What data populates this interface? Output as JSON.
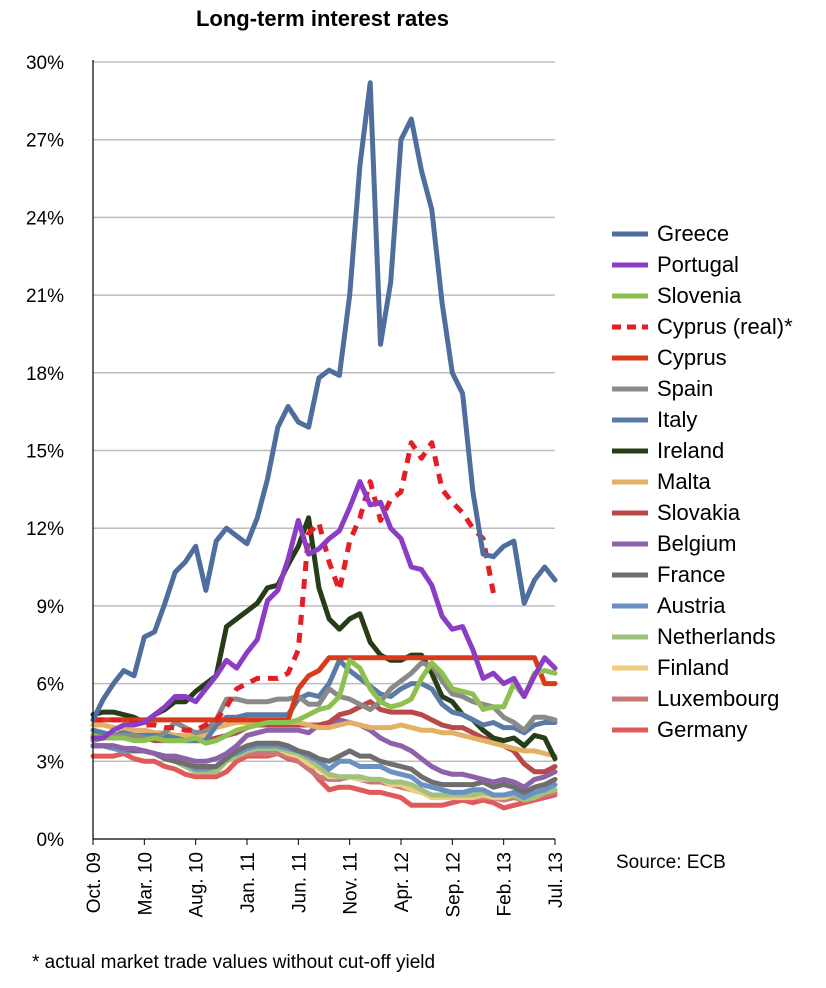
{
  "chart_data": {
    "type": "line",
    "title": "Long-term interest rates",
    "ylim": [
      0,
      30
    ],
    "y_ticks": [
      0,
      3,
      6,
      9,
      12,
      15,
      18,
      21,
      24,
      27,
      30
    ],
    "y_tick_labels": [
      "0%",
      "3%",
      "6%",
      "9%",
      "12%",
      "15%",
      "18%",
      "21%",
      "24%",
      "27%",
      "30%"
    ],
    "x_tick_labels": [
      "Oct. 09",
      "Mar. 10",
      "Aug. 10",
      "Jan. 11",
      "Jun. 11",
      "Nov. 11",
      "Apr. 12",
      "Sep. 12",
      "Feb. 13",
      "Jul. 13"
    ],
    "x_start": "Oct. 09",
    "x_end": "Jul. 13",
    "grid": true,
    "legend_position": "right",
    "source": "Source: ECB",
    "footnote": "* actual market trade values without cut-off yield",
    "series": [
      {
        "name": "Greece",
        "color": "#4F6E9E",
        "dashed": false,
        "values": [
          4.6,
          5.4,
          6.0,
          6.5,
          6.3,
          7.8,
          8.0,
          9.1,
          10.3,
          10.7,
          11.3,
          9.6,
          11.5,
          12.0,
          11.7,
          11.4,
          12.4,
          13.9,
          15.9,
          16.7,
          16.1,
          15.9,
          17.8,
          18.1,
          17.9,
          21.0,
          26.0,
          29.2,
          19.1,
          21.5,
          27.0,
          27.8,
          25.8,
          24.3,
          20.7,
          18.0,
          17.2,
          13.4,
          11.0,
          10.9,
          11.3,
          11.5,
          9.1,
          10.0,
          10.5,
          10.0
        ]
      },
      {
        "name": "Portugal",
        "color": "#8B3DC6",
        "dashed": false,
        "values": [
          3.9,
          3.9,
          4.2,
          4.4,
          4.4,
          4.5,
          4.8,
          5.1,
          5.5,
          5.5,
          5.3,
          5.8,
          6.3,
          6.9,
          6.6,
          7.2,
          7.7,
          9.2,
          9.6,
          10.8,
          12.3,
          11.0,
          11.2,
          11.6,
          11.9,
          12.8,
          13.8,
          12.9,
          13.0,
          12.0,
          11.6,
          10.5,
          10.4,
          9.8,
          8.6,
          8.1,
          8.2,
          7.3,
          6.2,
          6.4,
          6.0,
          6.2,
          5.5,
          6.3,
          7.0,
          6.6
        ]
      },
      {
        "name": "Slovenia",
        "color": "#8DC050",
        "dashed": false,
        "values": [
          4.0,
          3.9,
          3.9,
          3.9,
          3.8,
          3.8,
          3.9,
          3.8,
          3.8,
          3.8,
          3.9,
          3.7,
          3.8,
          4.0,
          4.2,
          4.3,
          4.4,
          4.5,
          4.5,
          4.5,
          4.6,
          4.8,
          5.0,
          5.1,
          5.5,
          6.9,
          6.6,
          5.8,
          5.3,
          5.1,
          5.2,
          5.4,
          6.2,
          6.8,
          6.4,
          5.8,
          5.7,
          5.6,
          5.0,
          5.1,
          5.1,
          6.0,
          5.5,
          6.4,
          6.5,
          6.4
        ]
      },
      {
        "name": "Cyprus (real)*",
        "color": "#E31E25",
        "dashed": true,
        "values": [
          4.6,
          4.6,
          4.6,
          4.6,
          4.5,
          4.4,
          4.4,
          4.3,
          4.3,
          4.2,
          4.2,
          4.4,
          4.6,
          5.1,
          5.8,
          6.0,
          6.2,
          6.2,
          6.2,
          6.4,
          7.3,
          11.8,
          12.2,
          10.7,
          9.6,
          11.5,
          12.4,
          13.8,
          12.3,
          13.1,
          13.4,
          15.3,
          14.7,
          15.3,
          13.5,
          13.0,
          12.6,
          12.0,
          11.6,
          9.5,
          null,
          null,
          null,
          null,
          null,
          null
        ]
      },
      {
        "name": "Cyprus",
        "color": "#D93A19",
        "dashed": false,
        "values": [
          4.6,
          4.6,
          4.6,
          4.6,
          4.6,
          4.6,
          4.6,
          4.6,
          4.6,
          4.6,
          4.6,
          4.6,
          4.6,
          4.6,
          4.6,
          4.6,
          4.6,
          4.6,
          4.6,
          4.6,
          5.8,
          6.3,
          6.5,
          7.0,
          7.0,
          7.0,
          7.0,
          7.0,
          7.0,
          7.0,
          7.0,
          7.0,
          7.0,
          7.0,
          7.0,
          7.0,
          7.0,
          7.0,
          7.0,
          7.0,
          7.0,
          7.0,
          7.0,
          7.0,
          6.0,
          6.0
        ]
      },
      {
        "name": "Spain",
        "color": "#8A8A8A",
        "dashed": false,
        "values": [
          3.8,
          3.9,
          4.0,
          4.0,
          4.0,
          3.9,
          3.9,
          4.1,
          4.5,
          4.3,
          4.1,
          4.2,
          4.6,
          5.4,
          5.4,
          5.3,
          5.3,
          5.3,
          5.4,
          5.4,
          5.5,
          5.2,
          5.2,
          5.8,
          5.5,
          5.4,
          5.2,
          5.0,
          5.3,
          5.8,
          6.1,
          6.4,
          6.8,
          6.7,
          6.1,
          5.6,
          5.5,
          5.3,
          5.2,
          5.1,
          4.7,
          4.5,
          4.2,
          4.7,
          4.7,
          4.6
        ]
      },
      {
        "name": "Italy",
        "color": "#5A7BA6",
        "dashed": false,
        "values": [
          4.2,
          4.1,
          4.0,
          4.1,
          4.0,
          4.0,
          4.0,
          4.0,
          3.9,
          3.8,
          3.8,
          3.8,
          4.4,
          4.7,
          4.7,
          4.8,
          4.8,
          4.8,
          4.8,
          4.8,
          5.4,
          5.6,
          5.5,
          6.0,
          6.9,
          6.5,
          6.2,
          5.9,
          5.6,
          5.5,
          5.8,
          6.0,
          6.0,
          5.8,
          5.2,
          4.9,
          4.8,
          4.6,
          4.4,
          4.5,
          4.3,
          4.3,
          4.1,
          4.4,
          4.5,
          4.5
        ]
      },
      {
        "name": "Ireland",
        "color": "#273D18",
        "dashed": false,
        "values": [
          4.8,
          4.9,
          4.9,
          4.8,
          4.7,
          4.5,
          4.8,
          5.0,
          5.3,
          5.3,
          5.7,
          6.0,
          6.3,
          8.2,
          8.5,
          8.8,
          9.1,
          9.7,
          9.8,
          10.6,
          11.3,
          12.4,
          9.7,
          8.5,
          8.1,
          8.5,
          8.7,
          7.6,
          7.1,
          6.9,
          6.9,
          7.1,
          7.1,
          6.4,
          5.5,
          5.3,
          4.8,
          4.6,
          4.2,
          3.9,
          3.8,
          3.9,
          3.6,
          4.0,
          3.9,
          3.1
        ]
      },
      {
        "name": "Malta",
        "color": "#E2B165",
        "dashed": false,
        "values": [
          4.4,
          4.4,
          4.3,
          4.2,
          4.2,
          4.2,
          4.1,
          4.1,
          4.0,
          4.0,
          4.0,
          4.0,
          4.3,
          4.4,
          4.5,
          4.5,
          4.5,
          4.5,
          4.5,
          4.5,
          4.5,
          4.4,
          4.3,
          4.3,
          4.4,
          4.5,
          4.4,
          4.3,
          4.3,
          4.3,
          4.4,
          4.3,
          4.2,
          4.2,
          4.1,
          4.1,
          4.0,
          3.9,
          3.8,
          3.7,
          3.6,
          3.5,
          3.4,
          3.4,
          3.3,
          3.2
        ]
      },
      {
        "name": "Slovakia",
        "color": "#B94848",
        "dashed": false,
        "values": [
          4.0,
          4.0,
          3.9,
          3.9,
          3.9,
          3.9,
          3.8,
          3.8,
          3.8,
          3.8,
          3.8,
          3.8,
          3.9,
          4.0,
          4.1,
          4.3,
          4.4,
          4.4,
          4.4,
          4.4,
          4.4,
          4.4,
          4.4,
          4.5,
          4.8,
          4.9,
          5.1,
          5.3,
          5.0,
          4.9,
          4.9,
          4.9,
          4.8,
          4.6,
          4.4,
          4.3,
          4.3,
          4.1,
          3.9,
          3.8,
          3.6,
          3.4,
          2.9,
          2.6,
          2.6,
          2.8
        ]
      },
      {
        "name": "Belgium",
        "color": "#8D62A8",
        "dashed": false,
        "values": [
          3.6,
          3.6,
          3.6,
          3.5,
          3.5,
          3.4,
          3.3,
          3.2,
          3.2,
          3.1,
          3.0,
          3.0,
          3.1,
          3.3,
          3.6,
          4.0,
          4.1,
          4.2,
          4.2,
          4.2,
          4.2,
          4.1,
          4.4,
          4.5,
          4.6,
          4.5,
          4.4,
          4.2,
          3.9,
          3.7,
          3.6,
          3.4,
          3.1,
          2.8,
          2.6,
          2.5,
          2.5,
          2.4,
          2.3,
          2.2,
          2.3,
          2.2,
          2.0,
          2.3,
          2.4,
          2.6
        ]
      },
      {
        "name": "France",
        "color": "#6E6E6E",
        "dashed": false,
        "values": [
          3.6,
          3.6,
          3.6,
          3.5,
          3.4,
          3.4,
          3.3,
          3.1,
          3.0,
          2.9,
          2.8,
          2.8,
          2.8,
          3.1,
          3.4,
          3.6,
          3.7,
          3.7,
          3.7,
          3.6,
          3.4,
          3.3,
          3.1,
          3.0,
          3.2,
          3.4,
          3.2,
          3.2,
          3.0,
          2.9,
          2.8,
          2.7,
          2.4,
          2.2,
          2.1,
          2.1,
          2.1,
          2.1,
          2.2,
          2.0,
          2.1,
          2.0,
          1.8,
          2.0,
          2.1,
          2.3
        ]
      },
      {
        "name": "Austria",
        "color": "#6A90C4",
        "dashed": false,
        "values": [
          3.6,
          3.6,
          3.5,
          3.4,
          3.4,
          3.4,
          3.3,
          3.2,
          3.1,
          2.9,
          2.7,
          2.7,
          2.8,
          3.2,
          3.3,
          3.5,
          3.6,
          3.6,
          3.6,
          3.5,
          3.4,
          3.2,
          3.0,
          2.7,
          3.0,
          3.0,
          2.8,
          2.8,
          2.8,
          2.6,
          2.5,
          2.4,
          2.1,
          2.0,
          1.9,
          1.8,
          1.8,
          1.9,
          1.9,
          1.7,
          1.7,
          1.8,
          1.6,
          1.8,
          1.9,
          2.1
        ]
      },
      {
        "name": "Netherlands",
        "color": "#9FC27E",
        "dashed": false,
        "values": [
          3.6,
          3.6,
          3.5,
          3.4,
          3.4,
          3.4,
          3.3,
          3.1,
          3.0,
          2.8,
          2.6,
          2.6,
          2.6,
          3.0,
          3.2,
          3.4,
          3.5,
          3.5,
          3.5,
          3.4,
          3.3,
          3.1,
          2.8,
          2.5,
          2.4,
          2.4,
          2.4,
          2.3,
          2.3,
          2.2,
          2.2,
          2.1,
          1.9,
          1.7,
          1.7,
          1.7,
          1.7,
          1.7,
          1.8,
          1.7,
          1.7,
          1.7,
          1.5,
          1.6,
          1.8,
          1.9
        ]
      },
      {
        "name": "Finland",
        "color": "#F0CC80",
        "dashed": false,
        "values": [
          3.6,
          3.6,
          3.5,
          3.4,
          3.4,
          3.4,
          3.3,
          3.1,
          3.0,
          2.8,
          2.6,
          2.6,
          2.6,
          3.0,
          3.2,
          3.4,
          3.5,
          3.5,
          3.5,
          3.3,
          3.2,
          2.9,
          2.7,
          2.4,
          2.4,
          2.4,
          2.3,
          2.3,
          2.3,
          2.1,
          2.1,
          1.9,
          1.8,
          1.6,
          1.6,
          1.6,
          1.6,
          1.6,
          1.7,
          1.6,
          1.6,
          1.7,
          1.5,
          1.6,
          1.8,
          1.9
        ]
      },
      {
        "name": "Luxembourg",
        "color": "#C97878",
        "dashed": false,
        "values": [
          3.6,
          3.6,
          3.5,
          3.4,
          3.4,
          3.4,
          3.3,
          3.1,
          3.0,
          2.8,
          2.6,
          2.6,
          2.6,
          3.0,
          3.2,
          3.3,
          3.3,
          3.3,
          3.3,
          3.2,
          3.0,
          2.7,
          2.4,
          2.3,
          2.3,
          2.4,
          2.3,
          2.2,
          2.2,
          2.1,
          2.0,
          1.9,
          1.8,
          1.7,
          1.7,
          1.6,
          1.6,
          1.6,
          1.6,
          1.6,
          1.5,
          1.6,
          1.5,
          1.6,
          1.7,
          1.8
        ]
      },
      {
        "name": "Germany",
        "color": "#E05A5A",
        "dashed": false,
        "values": [
          3.2,
          3.2,
          3.2,
          3.3,
          3.1,
          3.0,
          3.0,
          2.8,
          2.7,
          2.5,
          2.4,
          2.4,
          2.4,
          2.6,
          3.0,
          3.2,
          3.2,
          3.2,
          3.3,
          3.1,
          3.0,
          2.8,
          2.3,
          1.9,
          2.0,
          2.0,
          1.9,
          1.8,
          1.8,
          1.7,
          1.6,
          1.3,
          1.3,
          1.3,
          1.3,
          1.4,
          1.5,
          1.4,
          1.5,
          1.4,
          1.2,
          1.3,
          1.4,
          1.5,
          1.6,
          1.7
        ]
      }
    ]
  }
}
